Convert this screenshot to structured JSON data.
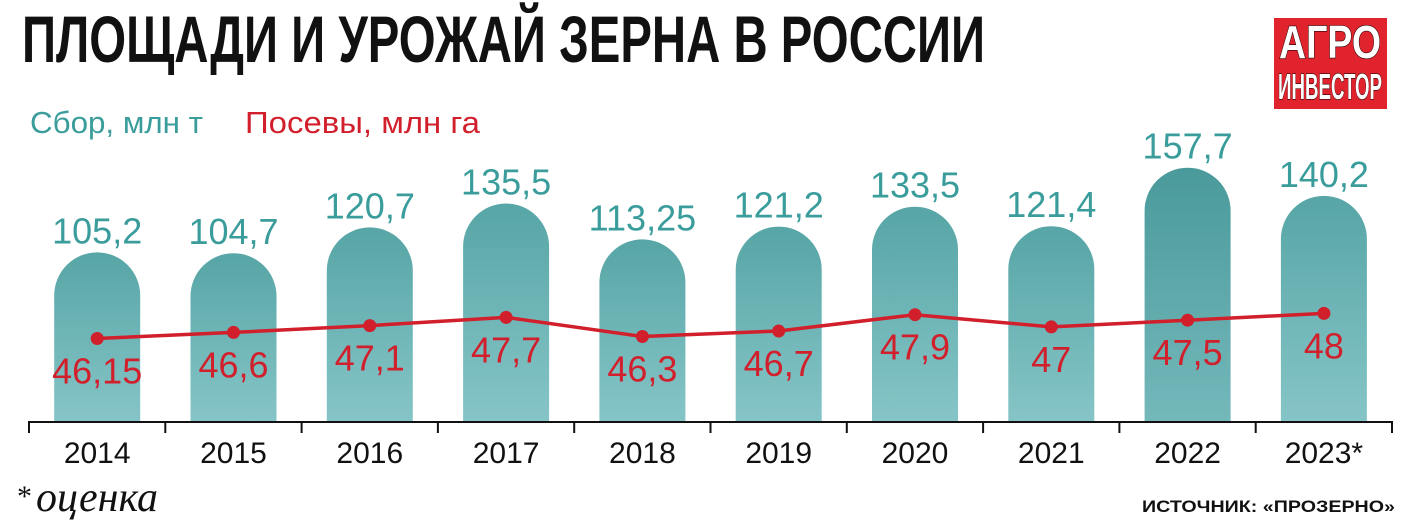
{
  "chart_data": {
    "type": "bar",
    "title": "ПЛОЩАДИ И УРОЖАЙ ЗЕРНА В РОССИИ",
    "categories": [
      "2014",
      "2015",
      "2016",
      "2017",
      "2018",
      "2019",
      "2020",
      "2021",
      "2022",
      "2023*"
    ],
    "series": [
      {
        "name": "Сбор, млн т",
        "type": "bar",
        "values": [
          105.2,
          104.7,
          120.7,
          135.5,
          113.25,
          121.2,
          133.5,
          121.4,
          157.7,
          140.2
        ],
        "labels": [
          "105,2",
          "104,7",
          "120,7",
          "135,5",
          "113,25",
          "121,2",
          "133,5",
          "121,4",
          "157,7",
          "140,2"
        ],
        "label_color": "#3a9d9b",
        "gradient": [
          "#57a5a6",
          "#86c5c7"
        ],
        "highlight_index": 8,
        "highlight_gradient": [
          "#4a9a9b",
          "#74b8ba"
        ]
      },
      {
        "name": "Посевы, млн га",
        "type": "line",
        "values": [
          46.15,
          46.6,
          47.1,
          47.7,
          46.3,
          46.7,
          47.9,
          47,
          47.5,
          48
        ],
        "labels": [
          "46,15",
          "46,6",
          "47,1",
          "47,7",
          "46,3",
          "46,7",
          "47,9",
          "47",
          "47,5",
          "48"
        ],
        "color": "#d11f2c"
      }
    ],
    "ylim": [
      0,
      160
    ],
    "y2lim": [
      40,
      59
    ],
    "grid": false,
    "legend_position": "top-left"
  },
  "logo": {
    "line1": "АГРО",
    "line2": "ИНВЕСТОР",
    "color": "#e0232d"
  },
  "footnote": {
    "mark": "*",
    "text": "оценка"
  },
  "source": "ИСТОЧНИК: «ПРОЗЕРНО»"
}
